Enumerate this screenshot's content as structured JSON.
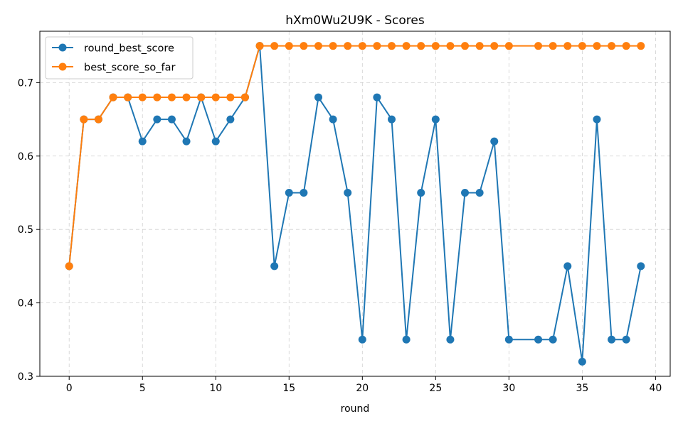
{
  "chart_data": {
    "type": "line",
    "title": "hXm0Wu2U9K - Scores",
    "xlabel": "round",
    "ylabel": "",
    "xlim": [
      -2,
      41
    ],
    "ylim": [
      0.3,
      0.77
    ],
    "xticks": [
      0,
      5,
      10,
      15,
      20,
      25,
      30,
      35,
      40
    ],
    "yticks": [
      0.3,
      0.4,
      0.5,
      0.6,
      0.7
    ],
    "grid": true,
    "legend_position": "top-left",
    "x": [
      0,
      1,
      2,
      3,
      4,
      5,
      6,
      7,
      8,
      9,
      10,
      11,
      12,
      13,
      14,
      15,
      16,
      17,
      18,
      19,
      20,
      21,
      22,
      23,
      24,
      25,
      26,
      27,
      28,
      29,
      30,
      32,
      33,
      34,
      35,
      36,
      37,
      38,
      39
    ],
    "series": [
      {
        "name": "round_best_score",
        "color": "#1f77b4",
        "values": [
          0.45,
          0.65,
          0.65,
          0.68,
          0.68,
          0.62,
          0.65,
          0.65,
          0.62,
          0.68,
          0.62,
          0.65,
          0.68,
          0.75,
          0.45,
          0.55,
          0.55,
          0.68,
          0.65,
          0.55,
          0.35,
          0.68,
          0.65,
          0.35,
          0.55,
          0.65,
          0.35,
          0.55,
          0.55,
          0.62,
          0.35,
          0.35,
          0.35,
          0.45,
          0.32,
          0.65,
          0.35,
          0.35,
          0.45
        ]
      },
      {
        "name": "best_score_so_far",
        "color": "#ff7f0e",
        "values": [
          0.45,
          0.65,
          0.65,
          0.68,
          0.68,
          0.68,
          0.68,
          0.68,
          0.68,
          0.68,
          0.68,
          0.68,
          0.68,
          0.75,
          0.75,
          0.75,
          0.75,
          0.75,
          0.75,
          0.75,
          0.75,
          0.75,
          0.75,
          0.75,
          0.75,
          0.75,
          0.75,
          0.75,
          0.75,
          0.75,
          0.75,
          0.75,
          0.75,
          0.75,
          0.75,
          0.75,
          0.75,
          0.75,
          0.75
        ]
      }
    ]
  }
}
